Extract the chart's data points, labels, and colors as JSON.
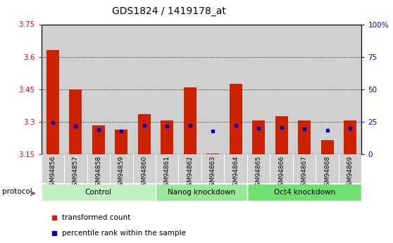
{
  "title": "GDS1824 / 1419178_at",
  "samples": [
    "GSM94856",
    "GSM94857",
    "GSM94858",
    "GSM94859",
    "GSM94860",
    "GSM94861",
    "GSM94862",
    "GSM94863",
    "GSM94864",
    "GSM94865",
    "GSM94866",
    "GSM94867",
    "GSM94868",
    "GSM94869"
  ],
  "red_values": [
    3.63,
    3.45,
    3.285,
    3.265,
    3.335,
    3.305,
    3.46,
    3.155,
    3.475,
    3.305,
    3.325,
    3.305,
    3.215,
    3.305
  ],
  "blue_values": [
    3.295,
    3.28,
    3.265,
    3.258,
    3.282,
    3.28,
    3.282,
    3.258,
    3.282,
    3.272,
    3.275,
    3.268,
    3.262,
    3.272
  ],
  "ylim_left": [
    3.15,
    3.75
  ],
  "yticks_left": [
    3.15,
    3.3,
    3.45,
    3.6,
    3.75
  ],
  "ytick_labels_left": [
    "3.15",
    "3.3",
    "3.45",
    "3.6",
    "3.75"
  ],
  "ylim_right": [
    0,
    100
  ],
  "yticks_right": [
    0,
    25,
    50,
    75,
    100
  ],
  "ytick_labels_right": [
    "0",
    "25",
    "50",
    "75",
    "100%"
  ],
  "groups": [
    {
      "label": "Control",
      "start": 0,
      "end": 4
    },
    {
      "label": "Nanog knockdown",
      "start": 5,
      "end": 8
    },
    {
      "label": "Oct4 knockdown",
      "start": 9,
      "end": 13
    }
  ],
  "group_colors": [
    "#c0f0c0",
    "#98e898",
    "#70e070"
  ],
  "bar_color": "#cc2200",
  "dot_color": "#0000cc",
  "bar_width": 0.55,
  "col_bg_color": "#d0d0d0",
  "plot_bg_color": "#ffffff",
  "base": 3.15,
  "grid_lines": [
    3.3,
    3.45,
    3.6
  ],
  "legend_items": [
    "transformed count",
    "percentile rank within the sample"
  ],
  "protocol_label": "protocol"
}
